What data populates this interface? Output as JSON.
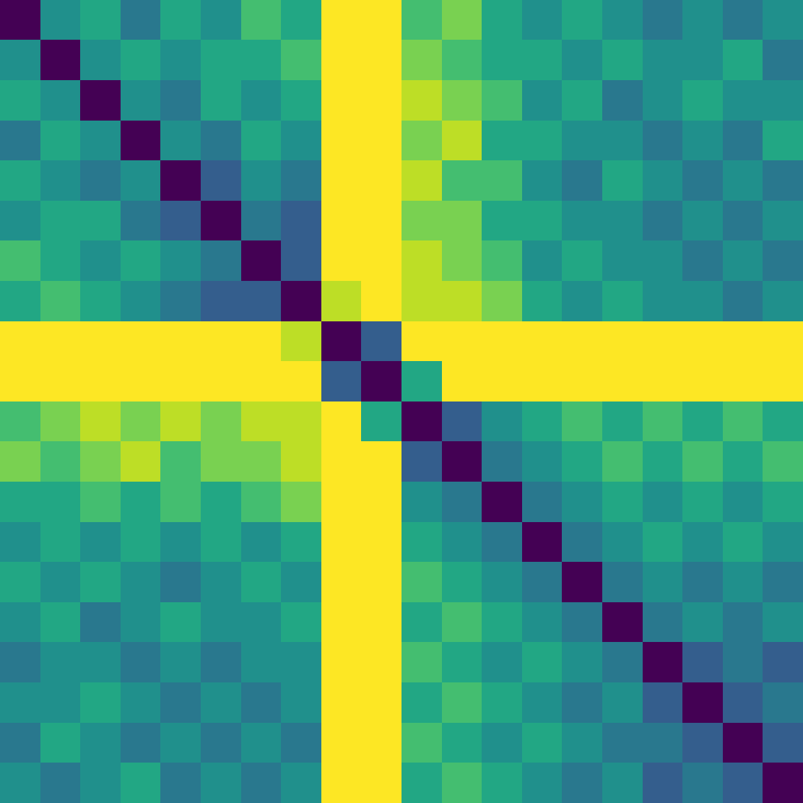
{
  "chart_data": {
    "type": "heatmap",
    "color": "viridis",
    "tick_labels": false,
    "zlim": [
      0,
      1
    ],
    "cells": [
      [
        0,
        0.5,
        0.6,
        0.4,
        0.6,
        0.5,
        0.7,
        0.6,
        1,
        1,
        0.7,
        0.8,
        0.6,
        0.5,
        0.6,
        0.5,
        0.4,
        0.5,
        0.4,
        0.5
      ],
      [
        0.5,
        0,
        0.5,
        0.6,
        0.5,
        0.6,
        0.6,
        0.7,
        1,
        1,
        0.8,
        0.7,
        0.6,
        0.6,
        0.5,
        0.6,
        0.5,
        0.5,
        0.6,
        0.4
      ],
      [
        0.6,
        0.5,
        0,
        0.5,
        0.4,
        0.6,
        0.5,
        0.6,
        1,
        1,
        0.9,
        0.8,
        0.7,
        0.5,
        0.6,
        0.4,
        0.5,
        0.6,
        0.5,
        0.5
      ],
      [
        0.4,
        0.6,
        0.5,
        0,
        0.5,
        0.4,
        0.6,
        0.5,
        1,
        1,
        0.8,
        0.9,
        0.6,
        0.6,
        0.5,
        0.5,
        0.4,
        0.5,
        0.4,
        0.6
      ],
      [
        0.6,
        0.5,
        0.4,
        0.5,
        0,
        0.3,
        0.5,
        0.4,
        1,
        1,
        0.9,
        0.7,
        0.7,
        0.5,
        0.4,
        0.6,
        0.5,
        0.4,
        0.5,
        0.4
      ],
      [
        0.5,
        0.6,
        0.6,
        0.4,
        0.3,
        0,
        0.4,
        0.3,
        1,
        1,
        0.8,
        0.8,
        0.6,
        0.6,
        0.5,
        0.5,
        0.4,
        0.5,
        0.4,
        0.5
      ],
      [
        0.7,
        0.6,
        0.5,
        0.6,
        0.5,
        0.4,
        0,
        0.3,
        1,
        1,
        0.9,
        0.8,
        0.7,
        0.5,
        0.6,
        0.5,
        0.5,
        0.4,
        0.5,
        0.4
      ],
      [
        0.6,
        0.7,
        0.6,
        0.5,
        0.4,
        0.3,
        0.3,
        0,
        0.9,
        1,
        0.9,
        0.9,
        0.8,
        0.6,
        0.5,
        0.6,
        0.5,
        0.5,
        0.4,
        0.5
      ],
      [
        1,
        1,
        1,
        1,
        1,
        1,
        1,
        0.9,
        0,
        0.3,
        1,
        1,
        1,
        1,
        1,
        1,
        1,
        1,
        1,
        1
      ],
      [
        1,
        1,
        1,
        1,
        1,
        1,
        1,
        1,
        0.3,
        0,
        0.6,
        1,
        1,
        1,
        1,
        1,
        1,
        1,
        1,
        1
      ],
      [
        0.7,
        0.8,
        0.9,
        0.8,
        0.9,
        0.8,
        0.9,
        0.9,
        1,
        0.6,
        0,
        0.3,
        0.5,
        0.6,
        0.7,
        0.6,
        0.7,
        0.6,
        0.7,
        0.6
      ],
      [
        0.8,
        0.7,
        0.8,
        0.9,
        0.7,
        0.8,
        0.8,
        0.9,
        1,
        1,
        0.3,
        0,
        0.4,
        0.5,
        0.6,
        0.7,
        0.6,
        0.7,
        0.6,
        0.7
      ],
      [
        0.6,
        0.6,
        0.7,
        0.6,
        0.7,
        0.6,
        0.7,
        0.8,
        1,
        1,
        0.5,
        0.4,
        0,
        0.4,
        0.5,
        0.6,
        0.5,
        0.6,
        0.5,
        0.6
      ],
      [
        0.5,
        0.6,
        0.5,
        0.6,
        0.5,
        0.6,
        0.5,
        0.6,
        1,
        1,
        0.6,
        0.5,
        0.4,
        0,
        0.4,
        0.5,
        0.6,
        0.5,
        0.6,
        0.5
      ],
      [
        0.6,
        0.5,
        0.6,
        0.5,
        0.4,
        0.5,
        0.6,
        0.5,
        1,
        1,
        0.7,
        0.6,
        0.5,
        0.4,
        0,
        0.4,
        0.5,
        0.4,
        0.5,
        0.4
      ],
      [
        0.5,
        0.6,
        0.4,
        0.5,
        0.6,
        0.5,
        0.5,
        0.6,
        1,
        1,
        0.6,
        0.7,
        0.6,
        0.5,
        0.4,
        0,
        0.4,
        0.5,
        0.4,
        0.5
      ],
      [
        0.4,
        0.5,
        0.5,
        0.4,
        0.5,
        0.4,
        0.5,
        0.5,
        1,
        1,
        0.7,
        0.6,
        0.5,
        0.6,
        0.5,
        0.4,
        0,
        0.3,
        0.4,
        0.3
      ],
      [
        0.5,
        0.5,
        0.6,
        0.5,
        0.4,
        0.5,
        0.4,
        0.5,
        1,
        1,
        0.6,
        0.7,
        0.6,
        0.5,
        0.4,
        0.5,
        0.3,
        0,
        0.3,
        0.4
      ],
      [
        0.4,
        0.6,
        0.5,
        0.4,
        0.5,
        0.4,
        0.5,
        0.4,
        1,
        1,
        0.7,
        0.6,
        0.5,
        0.6,
        0.5,
        0.4,
        0.4,
        0.3,
        0,
        0.3
      ],
      [
        0.5,
        0.4,
        0.5,
        0.6,
        0.4,
        0.5,
        0.4,
        0.5,
        1,
        1,
        0.6,
        0.7,
        0.6,
        0.5,
        0.4,
        0.5,
        0.3,
        0.4,
        0.3,
        0
      ]
    ]
  }
}
